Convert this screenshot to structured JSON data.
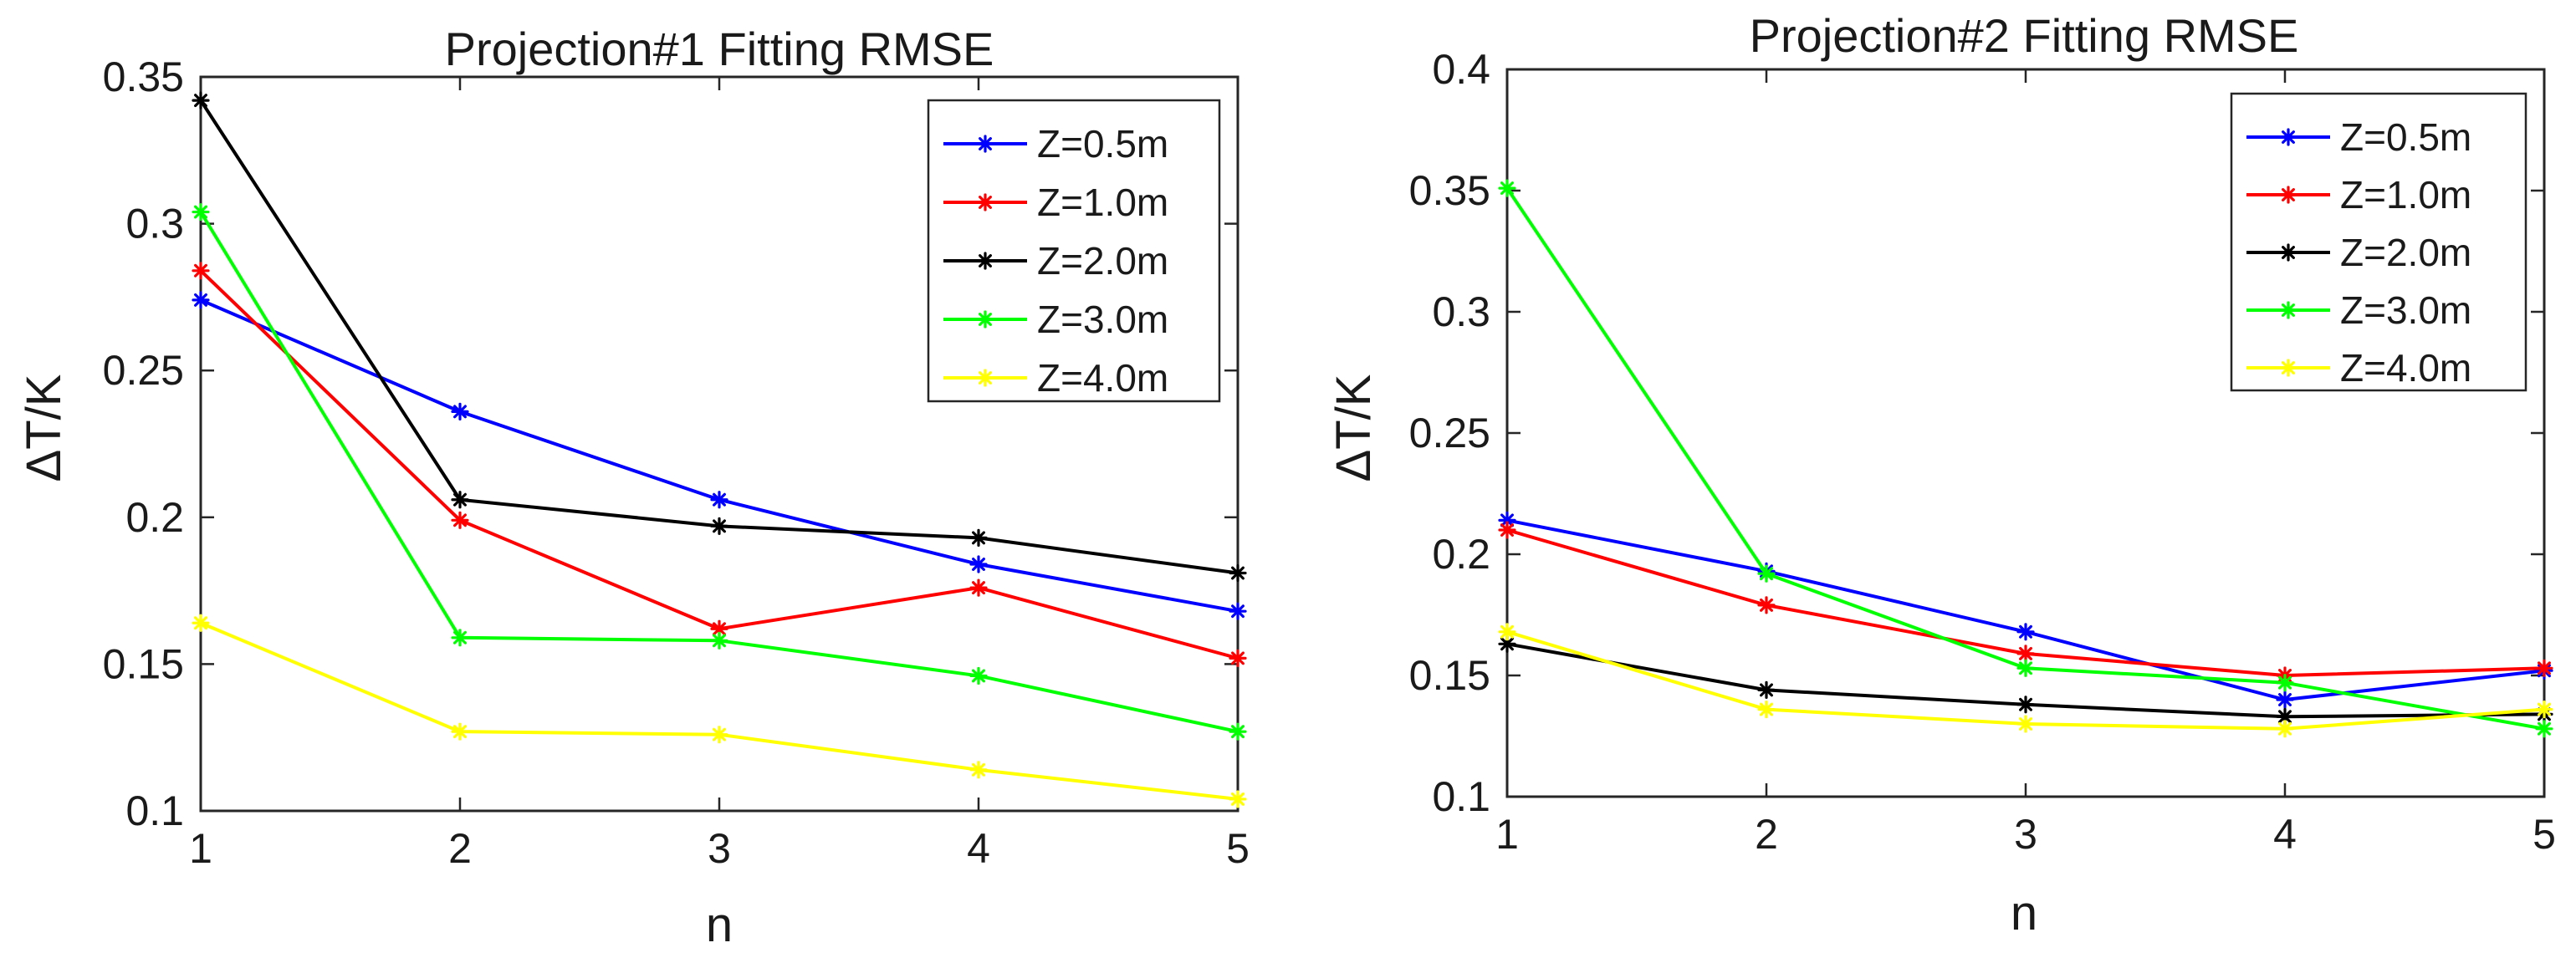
{
  "figure": {
    "colors": {
      "axis": "#262626",
      "background": "#ffffff"
    }
  },
  "chart_data": [
    {
      "type": "line",
      "title": "Projection#1 Fitting RMSE",
      "xlabel": "n",
      "ylabel": "ΔT/K",
      "xlim": [
        1,
        5
      ],
      "ylim": [
        0.1,
        0.35
      ],
      "xticks": [
        1,
        2,
        3,
        4,
        5
      ],
      "xtick_labels": [
        "1",
        "2",
        "3",
        "4",
        "5"
      ],
      "yticks": [
        0.1,
        0.15,
        0.2,
        0.25,
        0.3,
        0.35
      ],
      "ytick_labels": [
        "0.1",
        "0.15",
        "0.2",
        "0.25",
        "0.3",
        "0.35"
      ],
      "grid": false,
      "legend_position": "top-right",
      "marker": "asterisk",
      "x": [
        1,
        2,
        3,
        4,
        5
      ],
      "series": [
        {
          "name": "Z=0.5m",
          "color": "#0000ff",
          "values": [
            0.274,
            0.236,
            0.206,
            0.184,
            0.168
          ]
        },
        {
          "name": "Z=1.0m",
          "color": "#ff0000",
          "values": [
            0.284,
            0.199,
            0.162,
            0.176,
            0.152
          ]
        },
        {
          "name": "Z=2.0m",
          "color": "#000000",
          "values": [
            0.342,
            0.206,
            0.197,
            0.193,
            0.181
          ]
        },
        {
          "name": "Z=3.0m",
          "color": "#00ff00",
          "values": [
            0.304,
            0.159,
            0.158,
            0.146,
            0.127
          ]
        },
        {
          "name": "Z=4.0m",
          "color": "#ffff00",
          "values": [
            0.164,
            0.127,
            0.126,
            0.114,
            0.104
          ]
        }
      ]
    },
    {
      "type": "line",
      "title": "Projection#2 Fitting RMSE",
      "xlabel": "n",
      "ylabel": "ΔT/K",
      "xlim": [
        1,
        5
      ],
      "ylim": [
        0.1,
        0.4
      ],
      "xticks": [
        1,
        2,
        3,
        4,
        5
      ],
      "xtick_labels": [
        "1",
        "2",
        "3",
        "4",
        "5"
      ],
      "yticks": [
        0.1,
        0.15,
        0.2,
        0.25,
        0.3,
        0.35,
        0.4
      ],
      "ytick_labels": [
        "0.1",
        "0.15",
        "0.2",
        "0.25",
        "0.3",
        "0.35",
        "0.4"
      ],
      "grid": false,
      "legend_position": "top-right",
      "marker": "asterisk",
      "x": [
        1,
        2,
        3,
        4,
        5
      ],
      "series": [
        {
          "name": "Z=0.5m",
          "color": "#0000ff",
          "values": [
            0.214,
            0.193,
            0.168,
            0.14,
            0.152
          ]
        },
        {
          "name": "Z=1.0m",
          "color": "#ff0000",
          "values": [
            0.21,
            0.179,
            0.159,
            0.15,
            0.153
          ]
        },
        {
          "name": "Z=2.0m",
          "color": "#000000",
          "values": [
            0.163,
            0.144,
            0.138,
            0.133,
            0.134
          ]
        },
        {
          "name": "Z=3.0m",
          "color": "#00ff00",
          "values": [
            0.351,
            0.192,
            0.153,
            0.147,
            0.128
          ]
        },
        {
          "name": "Z=4.0m",
          "color": "#ffff00",
          "values": [
            0.168,
            0.136,
            0.13,
            0.128,
            0.136
          ]
        }
      ]
    }
  ]
}
